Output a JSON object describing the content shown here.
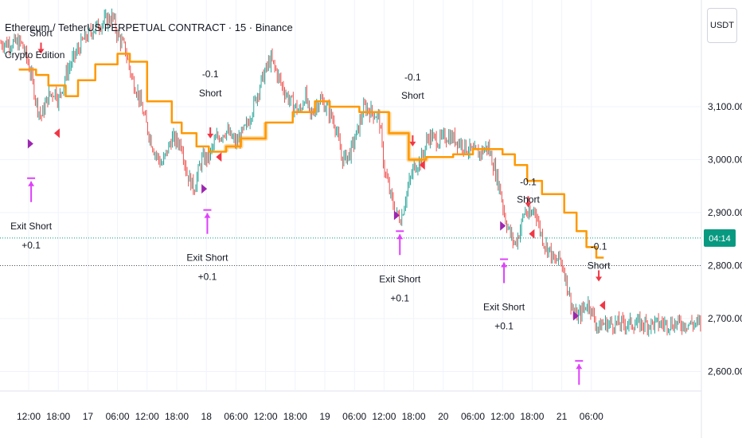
{
  "header": {
    "title": "Ethereum / TetherUS PERPETUAL CONTRACT · 15 · Binance",
    "strategy_name": "Crypto Edition"
  },
  "currency_button": {
    "label": "USDT"
  },
  "countdown_badge": {
    "label": "04:14",
    "color": "#089981"
  },
  "colors": {
    "up": "#26a69a",
    "down": "#ef5350",
    "trend": "#ff9800",
    "entry": "#f23645",
    "exit": "#e040fb"
  },
  "chart_data": {
    "type": "candlestick",
    "symbol": "ETHUSDT.P",
    "y_ticks": [
      2600,
      2700,
      2800,
      2900,
      3000,
      3100
    ],
    "y_tick_labels": [
      "2,600.00",
      "2,700.00",
      "2,800.00",
      "2,900.00",
      "3,000.00",
      "3,100.00"
    ],
    "x_ticks": [
      {
        "label": "12:00",
        "t": 0
      },
      {
        "label": "18:00",
        "t": 6
      },
      {
        "label": "17",
        "t": 12
      },
      {
        "label": "06:00",
        "t": 18
      },
      {
        "label": "12:00",
        "t": 24
      },
      {
        "label": "18:00",
        "t": 30
      },
      {
        "label": "18",
        "t": 36
      },
      {
        "label": "06:00",
        "t": 42
      },
      {
        "label": "12:00",
        "t": 48
      },
      {
        "label": "18:00",
        "t": 54
      },
      {
        "label": "19",
        "t": 60
      },
      {
        "label": "06:00",
        "t": 66
      },
      {
        "label": "12:00",
        "t": 72
      },
      {
        "label": "18:00",
        "t": 78
      },
      {
        "label": "20",
        "t": 84
      },
      {
        "label": "06:00",
        "t": 90
      },
      {
        "label": "12:00",
        "t": 96
      },
      {
        "label": "18:00",
        "t": 102
      },
      {
        "label": "21",
        "t": 108
      },
      {
        "label": "06:00",
        "t": 114
      }
    ],
    "price_keypoints": [
      [
        -1.5,
        3220
      ],
      [
        -0.5,
        3195
      ],
      [
        0.5,
        3160
      ],
      [
        1.5,
        3110
      ],
      [
        2.5,
        3080
      ],
      [
        4,
        3120
      ],
      [
        5.5,
        3130
      ],
      [
        6,
        3110
      ],
      [
        7.5,
        3160
      ],
      [
        9,
        3190
      ],
      [
        11,
        3225
      ],
      [
        13,
        3245
      ],
      [
        15,
        3260
      ],
      [
        17,
        3270
      ],
      [
        18,
        3235
      ],
      [
        19.5,
        3210
      ],
      [
        21,
        3150
      ],
      [
        22,
        3130
      ],
      [
        24,
        3060
      ],
      [
        25.5,
        3015
      ],
      [
        27,
        2990
      ],
      [
        29,
        3040
      ],
      [
        31,
        3030
      ],
      [
        32,
        2975
      ],
      [
        33.5,
        2945
      ],
      [
        35,
        3000
      ],
      [
        36.5,
        3005
      ],
      [
        38,
        3040
      ],
      [
        40,
        3055
      ],
      [
        42,
        3030
      ],
      [
        44,
        3060
      ],
      [
        45.5,
        3100
      ],
      [
        47,
        3145
      ],
      [
        49,
        3190
      ],
      [
        50,
        3170
      ],
      [
        51.5,
        3135
      ],
      [
        53,
        3110
      ],
      [
        55,
        3090
      ],
      [
        56,
        3125
      ],
      [
        57,
        3080
      ],
      [
        59,
        3115
      ],
      [
        60.5,
        3095
      ],
      [
        62,
        3070
      ],
      [
        63.5,
        3000
      ],
      [
        65,
        3010
      ],
      [
        66.5,
        3050
      ],
      [
        68,
        3100
      ],
      [
        69.5,
        3090
      ],
      [
        71,
        3080
      ],
      [
        72,
        2985
      ],
      [
        73.5,
        2925
      ],
      [
        74.5,
        2895
      ],
      [
        75.5,
        2890
      ],
      [
        76.5,
        2935
      ],
      [
        78,
        2985
      ],
      [
        79.5,
        3000
      ],
      [
        81,
        3045
      ],
      [
        83,
        3035
      ],
      [
        85,
        3045
      ],
      [
        87,
        3035
      ],
      [
        89,
        3020
      ],
      [
        91,
        3010
      ],
      [
        93,
        3025
      ],
      [
        94,
        2995
      ],
      [
        95.5,
        2945
      ],
      [
        96.5,
        2890
      ],
      [
        97.5,
        2860
      ],
      [
        98.5,
        2840
      ],
      [
        99.5,
        2865
      ],
      [
        100.5,
        2905
      ],
      [
        101.5,
        2890
      ],
      [
        102.5,
        2910
      ],
      [
        103.5,
        2870
      ],
      [
        104.5,
        2840
      ],
      [
        105.5,
        2830
      ],
      [
        106.5,
        2805
      ],
      [
        107.5,
        2815
      ],
      [
        108.5,
        2790
      ],
      [
        109.5,
        2745
      ],
      [
        110.5,
        2705
      ],
      [
        111.5,
        2705
      ],
      [
        112.5,
        2720
      ],
      [
        113.5,
        2730
      ],
      [
        114.5,
        2700
      ],
      [
        115.5,
        2680
      ],
      [
        116,
        2690
      ]
    ],
    "trend_line": [
      [
        -2,
        3170
      ],
      [
        1.5,
        3170
      ],
      [
        1.5,
        3160
      ],
      [
        4,
        3160
      ],
      [
        4,
        3140
      ],
      [
        7.5,
        3140
      ],
      [
        7.5,
        3120
      ],
      [
        10,
        3120
      ],
      [
        10,
        3150
      ],
      [
        13.5,
        3150
      ],
      [
        13.5,
        3180
      ],
      [
        18,
        3180
      ],
      [
        18,
        3200
      ],
      [
        20.5,
        3200
      ],
      [
        20.5,
        3185
      ],
      [
        24,
        3185
      ],
      [
        24,
        3110
      ],
      [
        29,
        3110
      ],
      [
        29,
        3070
      ],
      [
        31,
        3070
      ],
      [
        31,
        3050
      ],
      [
        34,
        3050
      ],
      [
        34,
        3025
      ],
      [
        36.5,
        3025
      ],
      [
        36.5,
        3015
      ],
      [
        40,
        3015
      ],
      [
        40,
        3025
      ],
      [
        43,
        3025
      ],
      [
        43,
        3040
      ],
      [
        48,
        3040
      ],
      [
        48,
        3070
      ],
      [
        53.5,
        3070
      ],
      [
        53.5,
        3090
      ],
      [
        58,
        3090
      ],
      [
        58,
        3110
      ],
      [
        61,
        3110
      ],
      [
        61,
        3100
      ],
      [
        67,
        3100
      ],
      [
        67,
        3090
      ],
      [
        73,
        3090
      ],
      [
        73,
        3050
      ],
      [
        77,
        3050
      ],
      [
        77,
        3000
      ],
      [
        80.5,
        3000
      ],
      [
        80.5,
        3005
      ],
      [
        86,
        3005
      ],
      [
        86,
        3010
      ],
      [
        90,
        3010
      ],
      [
        90,
        3020
      ],
      [
        96,
        3020
      ],
      [
        96,
        3010
      ],
      [
        98.5,
        3010
      ],
      [
        98.5,
        2990
      ],
      [
        101,
        2990
      ],
      [
        101,
        2960
      ],
      [
        104,
        2960
      ],
      [
        104,
        2935
      ],
      [
        108.5,
        2935
      ],
      [
        108.5,
        2900
      ],
      [
        111,
        2900
      ],
      [
        111,
        2865
      ],
      [
        113,
        2865
      ],
      [
        113,
        2835
      ],
      [
        115,
        2835
      ],
      [
        115,
        2815
      ],
      [
        116.5,
        2815
      ]
    ],
    "trend_glow_segments": [
      [
        39,
        48
      ],
      [
        72,
        85
      ]
    ],
    "dotted_levels": [
      {
        "price": 2852,
        "color": "#089981"
      },
      {
        "price": 2800,
        "color": "#555555"
      }
    ],
    "entries": [
      {
        "t": 2.5,
        "price": 3200,
        "label1": "",
        "label2": "Short"
      },
      {
        "t": 36.8,
        "price": 3040,
        "label1": "-0.1",
        "label2": "Short"
      },
      {
        "t": 77.8,
        "price": 3025,
        "label1": "-0.1",
        "label2": "Short"
      },
      {
        "t": 101.2,
        "price": 2910,
        "label1": "-0.1",
        "label2": "Short"
      },
      {
        "t": 115.5,
        "price": 2770,
        "label1": "-0.1",
        "label2": "Short"
      }
    ],
    "entry_label_offsets": [
      {
        "l1": 0,
        "l2": -22
      },
      {
        "l1": -77,
        "l2": -53
      },
      {
        "l1": -83,
        "l2": -60
      },
      {
        "l1": -28,
        "l2": -6
      },
      {
        "l1": -40,
        "l2": -16
      }
    ],
    "exits": [
      {
        "t": 0.5,
        "price": 2965,
        "label1": "Exit Short",
        "label2": "+0.1"
      },
      {
        "t": 36.2,
        "price": 2905,
        "label1": "Exit Short",
        "label2": "+0.1"
      },
      {
        "t": 75.2,
        "price": 2865,
        "label1": "Exit Short",
        "label2": "+0.1"
      },
      {
        "t": 96.3,
        "price": 2812,
        "label1": "Exit Short",
        "label2": "+0.1"
      },
      {
        "t": 111.5,
        "price": 2620,
        "label1": "",
        "label2": ""
      }
    ],
    "purple_marks": [
      [
        0.3,
        3030
      ],
      [
        35.5,
        2945
      ],
      [
        74.5,
        2895
      ],
      [
        96,
        2875
      ],
      [
        110.8,
        2705
      ]
    ],
    "red_marks": [
      [
        5.8,
        3050
      ],
      [
        38.6,
        3005
      ],
      [
        79.8,
        2990
      ],
      [
        102,
        2860
      ],
      [
        116.3,
        2725
      ]
    ],
    "last_price": 2852,
    "grid": true
  }
}
